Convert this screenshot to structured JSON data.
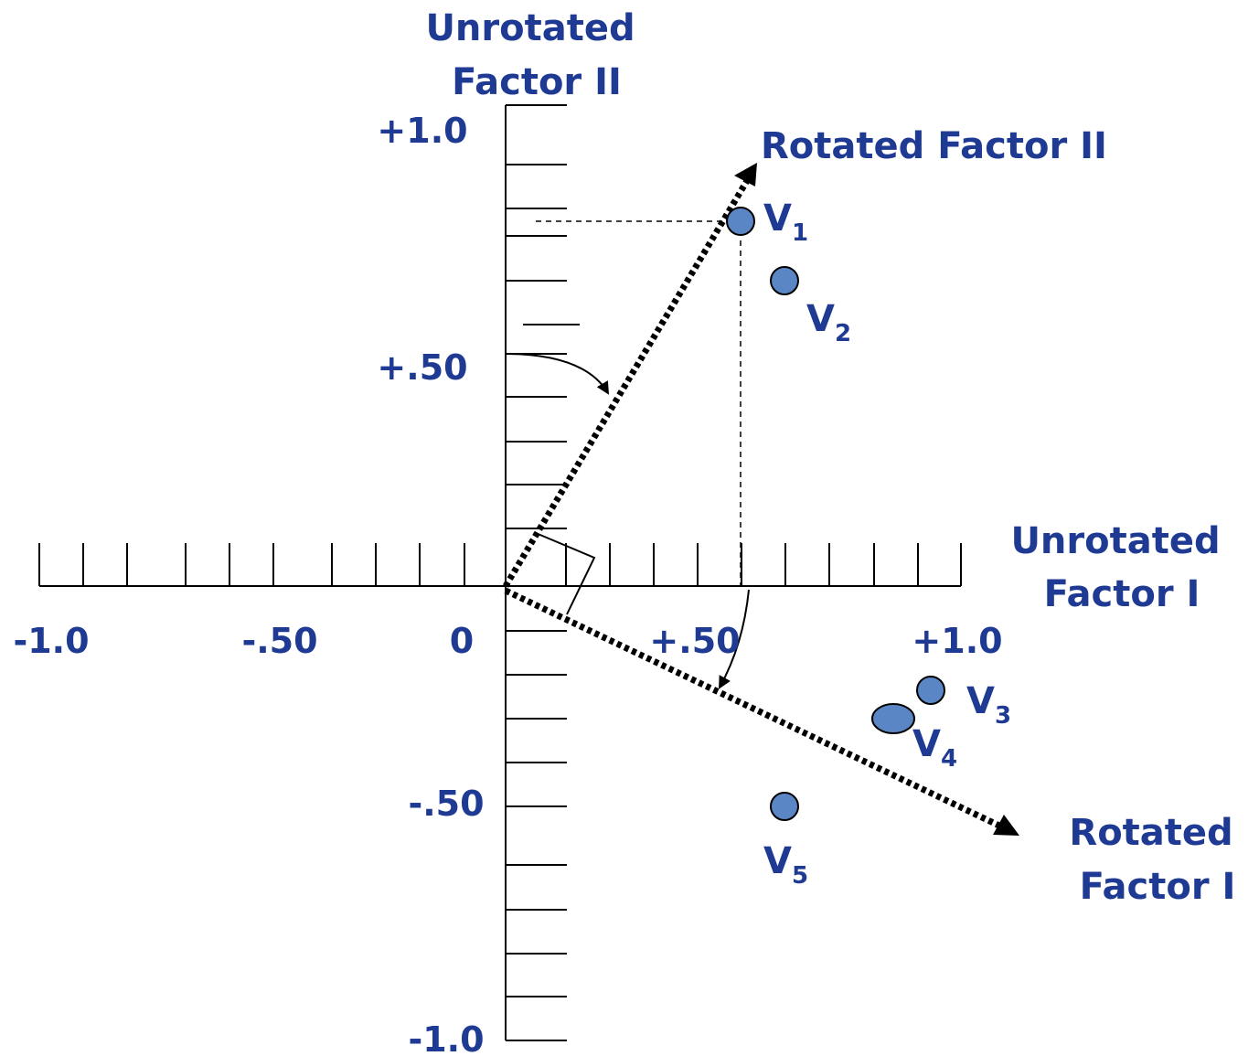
{
  "axes": {
    "unrotated_factor_2": [
      "Unrotated",
      "Factor II"
    ],
    "unrotated_factor_1": [
      "Unrotated",
      "Factor I"
    ],
    "rotated_factor_2": "Rotated Factor II",
    "rotated_factor_1": [
      "Rotated",
      "Factor I"
    ]
  },
  "y_ticks": [
    "+1.0",
    "+.50",
    "-.50",
    "-1.0"
  ],
  "x_ticks": [
    "-1.0",
    "-.50",
    "0",
    "+.50",
    "+1.0"
  ],
  "variables": [
    {
      "letter": "V",
      "sub": "1"
    },
    {
      "letter": "V",
      "sub": "2"
    },
    {
      "letter": "V",
      "sub": "3"
    },
    {
      "letter": "V",
      "sub": "4"
    },
    {
      "letter": "V",
      "sub": "5"
    }
  ],
  "colors": {
    "label": "#1f3a93",
    "point_fill": "#5b86c5",
    "axis": "#000000"
  }
}
